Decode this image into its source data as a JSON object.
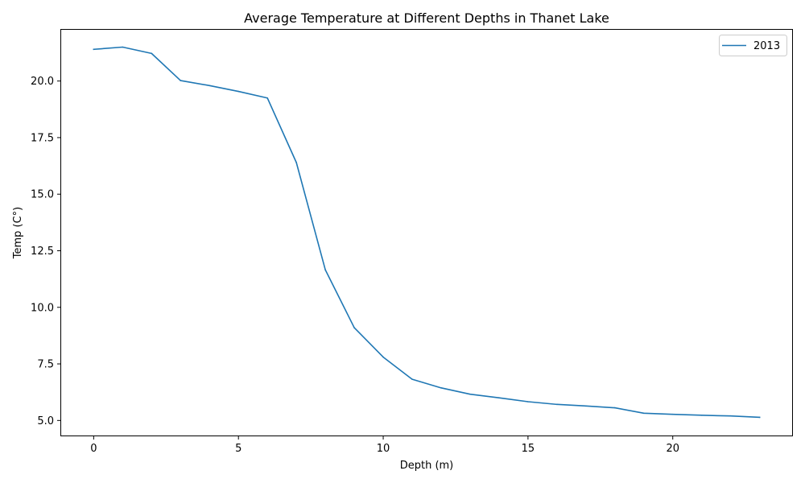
{
  "chart_data": {
    "type": "line",
    "title": "Average Temperature at Different Depths in Thanet Lake",
    "xlabel": "Depth (m)",
    "ylabel": "Temp (C°)",
    "xlim": [
      -1.15,
      24.15
    ],
    "ylim": [
      4.3,
      22.3
    ],
    "xticks": [
      0,
      5,
      10,
      15,
      20
    ],
    "xtick_labels": [
      "0",
      "5",
      "10",
      "15",
      "20"
    ],
    "yticks": [
      5.0,
      7.5,
      10.0,
      12.5,
      15.0,
      17.5,
      20.0
    ],
    "ytick_labels": [
      "5.0",
      "7.5",
      "10.0",
      "12.5",
      "15.0",
      "17.5",
      "20.0"
    ],
    "grid": false,
    "legend_position": "upper right",
    "series": [
      {
        "name": "2013",
        "color": "#1f77b4",
        "x": [
          0,
          1,
          2,
          3,
          4,
          5,
          6,
          7,
          8,
          9,
          10,
          11,
          12,
          13,
          14,
          15,
          16,
          17,
          18,
          19,
          20,
          21,
          22,
          23
        ],
        "y": [
          21.4,
          21.5,
          21.22,
          20.02,
          19.8,
          19.54,
          19.25,
          16.4,
          11.66,
          9.1,
          7.8,
          6.82,
          6.44,
          6.16,
          6.0,
          5.83,
          5.71,
          5.64,
          5.56,
          5.32,
          5.27,
          5.23,
          5.2,
          5.14
        ]
      }
    ]
  }
}
